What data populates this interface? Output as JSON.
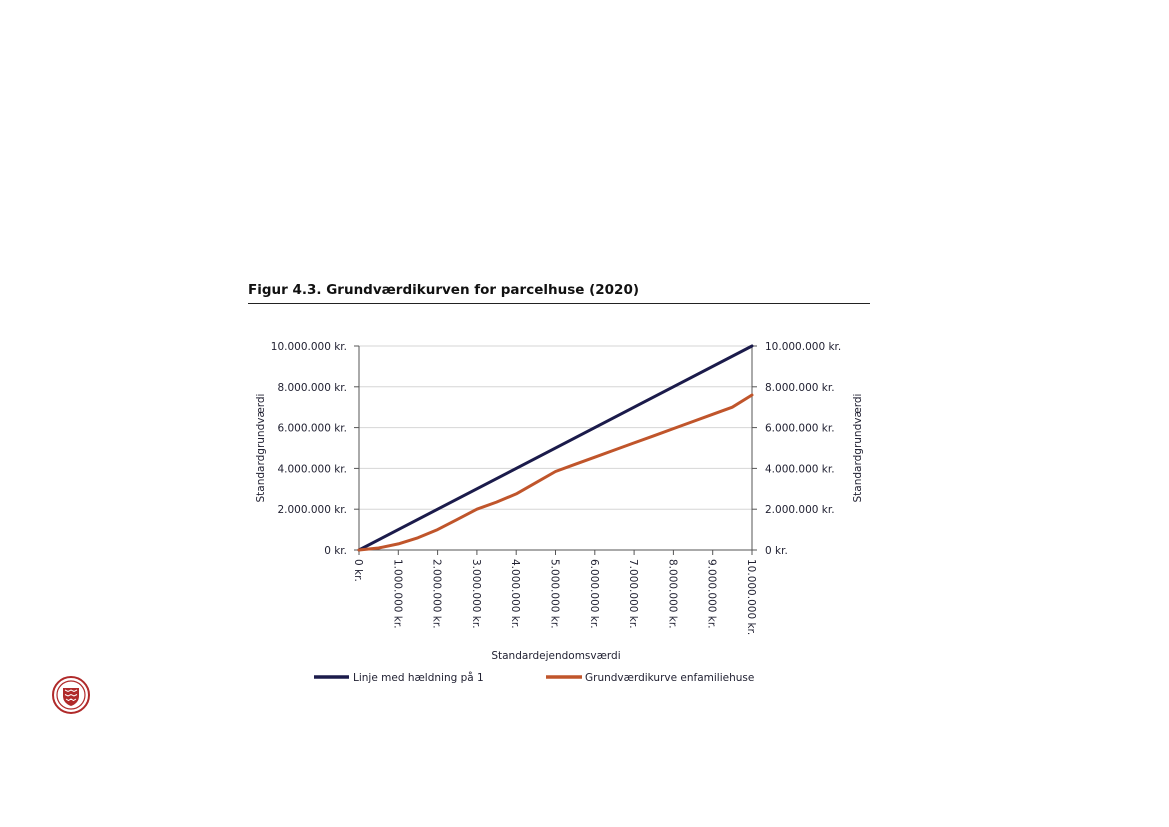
{
  "figure": {
    "title": "Figur 4.3. Grundværdikurven for parcelhuse (2020)"
  },
  "colors": {
    "series_line": "#1b1b4b",
    "series_curve": "#c0552b",
    "grid": "#d6d6d6",
    "axis": "#555555"
  },
  "logo": {
    "icon": "danish-coat-of-arms-seal-icon"
  },
  "chart_data": {
    "type": "line",
    "xlabel": "Standardejendomsværdi",
    "ylabel": "Standardgrundværdi",
    "ylabel_right": "Standardgrundværdi",
    "xlim": [
      0,
      10000000
    ],
    "ylim": [
      0,
      10000000
    ],
    "x_tick_values": [
      0,
      1000000,
      2000000,
      3000000,
      4000000,
      5000000,
      6000000,
      7000000,
      8000000,
      9000000,
      10000000
    ],
    "x_tick_labels": [
      "0 kr.",
      "1.000.000 kr.",
      "2.000.000 kr.",
      "3.000.000 kr.",
      "4.000.000 kr.",
      "5.000.000 kr.",
      "6.000.000 kr.",
      "7.000.000 kr.",
      "8.000.000 kr.",
      "9.000.000 kr.",
      "10.000.000 kr."
    ],
    "y_tick_values": [
      0,
      2000000,
      4000000,
      6000000,
      8000000,
      10000000
    ],
    "y_tick_labels": [
      "0 kr.",
      "2.000.000 kr.",
      "4.000.000 kr.",
      "6.000.000 kr.",
      "8.000.000 kr.",
      "10.000.000 kr."
    ],
    "grid": "horizontal",
    "legend_position": "bottom",
    "series": [
      {
        "name": "Linje med hældning på 1",
        "x": [
          0,
          10000000
        ],
        "y": [
          0,
          10000000
        ]
      },
      {
        "name": "Grundværdikurve enfamiliehuse",
        "x": [
          0,
          500000,
          1000000,
          1500000,
          2000000,
          2500000,
          3000000,
          3500000,
          4000000,
          4500000,
          5000000,
          5500000,
          6000000,
          6500000,
          7000000,
          7500000,
          8000000,
          8500000,
          9000000,
          9500000,
          10000000
        ],
        "y": [
          0,
          100000,
          300000,
          600000,
          1000000,
          1500000,
          2000000,
          2350000,
          2750000,
          3300000,
          3850000,
          4200000,
          4550000,
          4900000,
          5250000,
          5600000,
          5950000,
          6300000,
          6650000,
          7000000,
          7600000
        ]
      }
    ]
  }
}
